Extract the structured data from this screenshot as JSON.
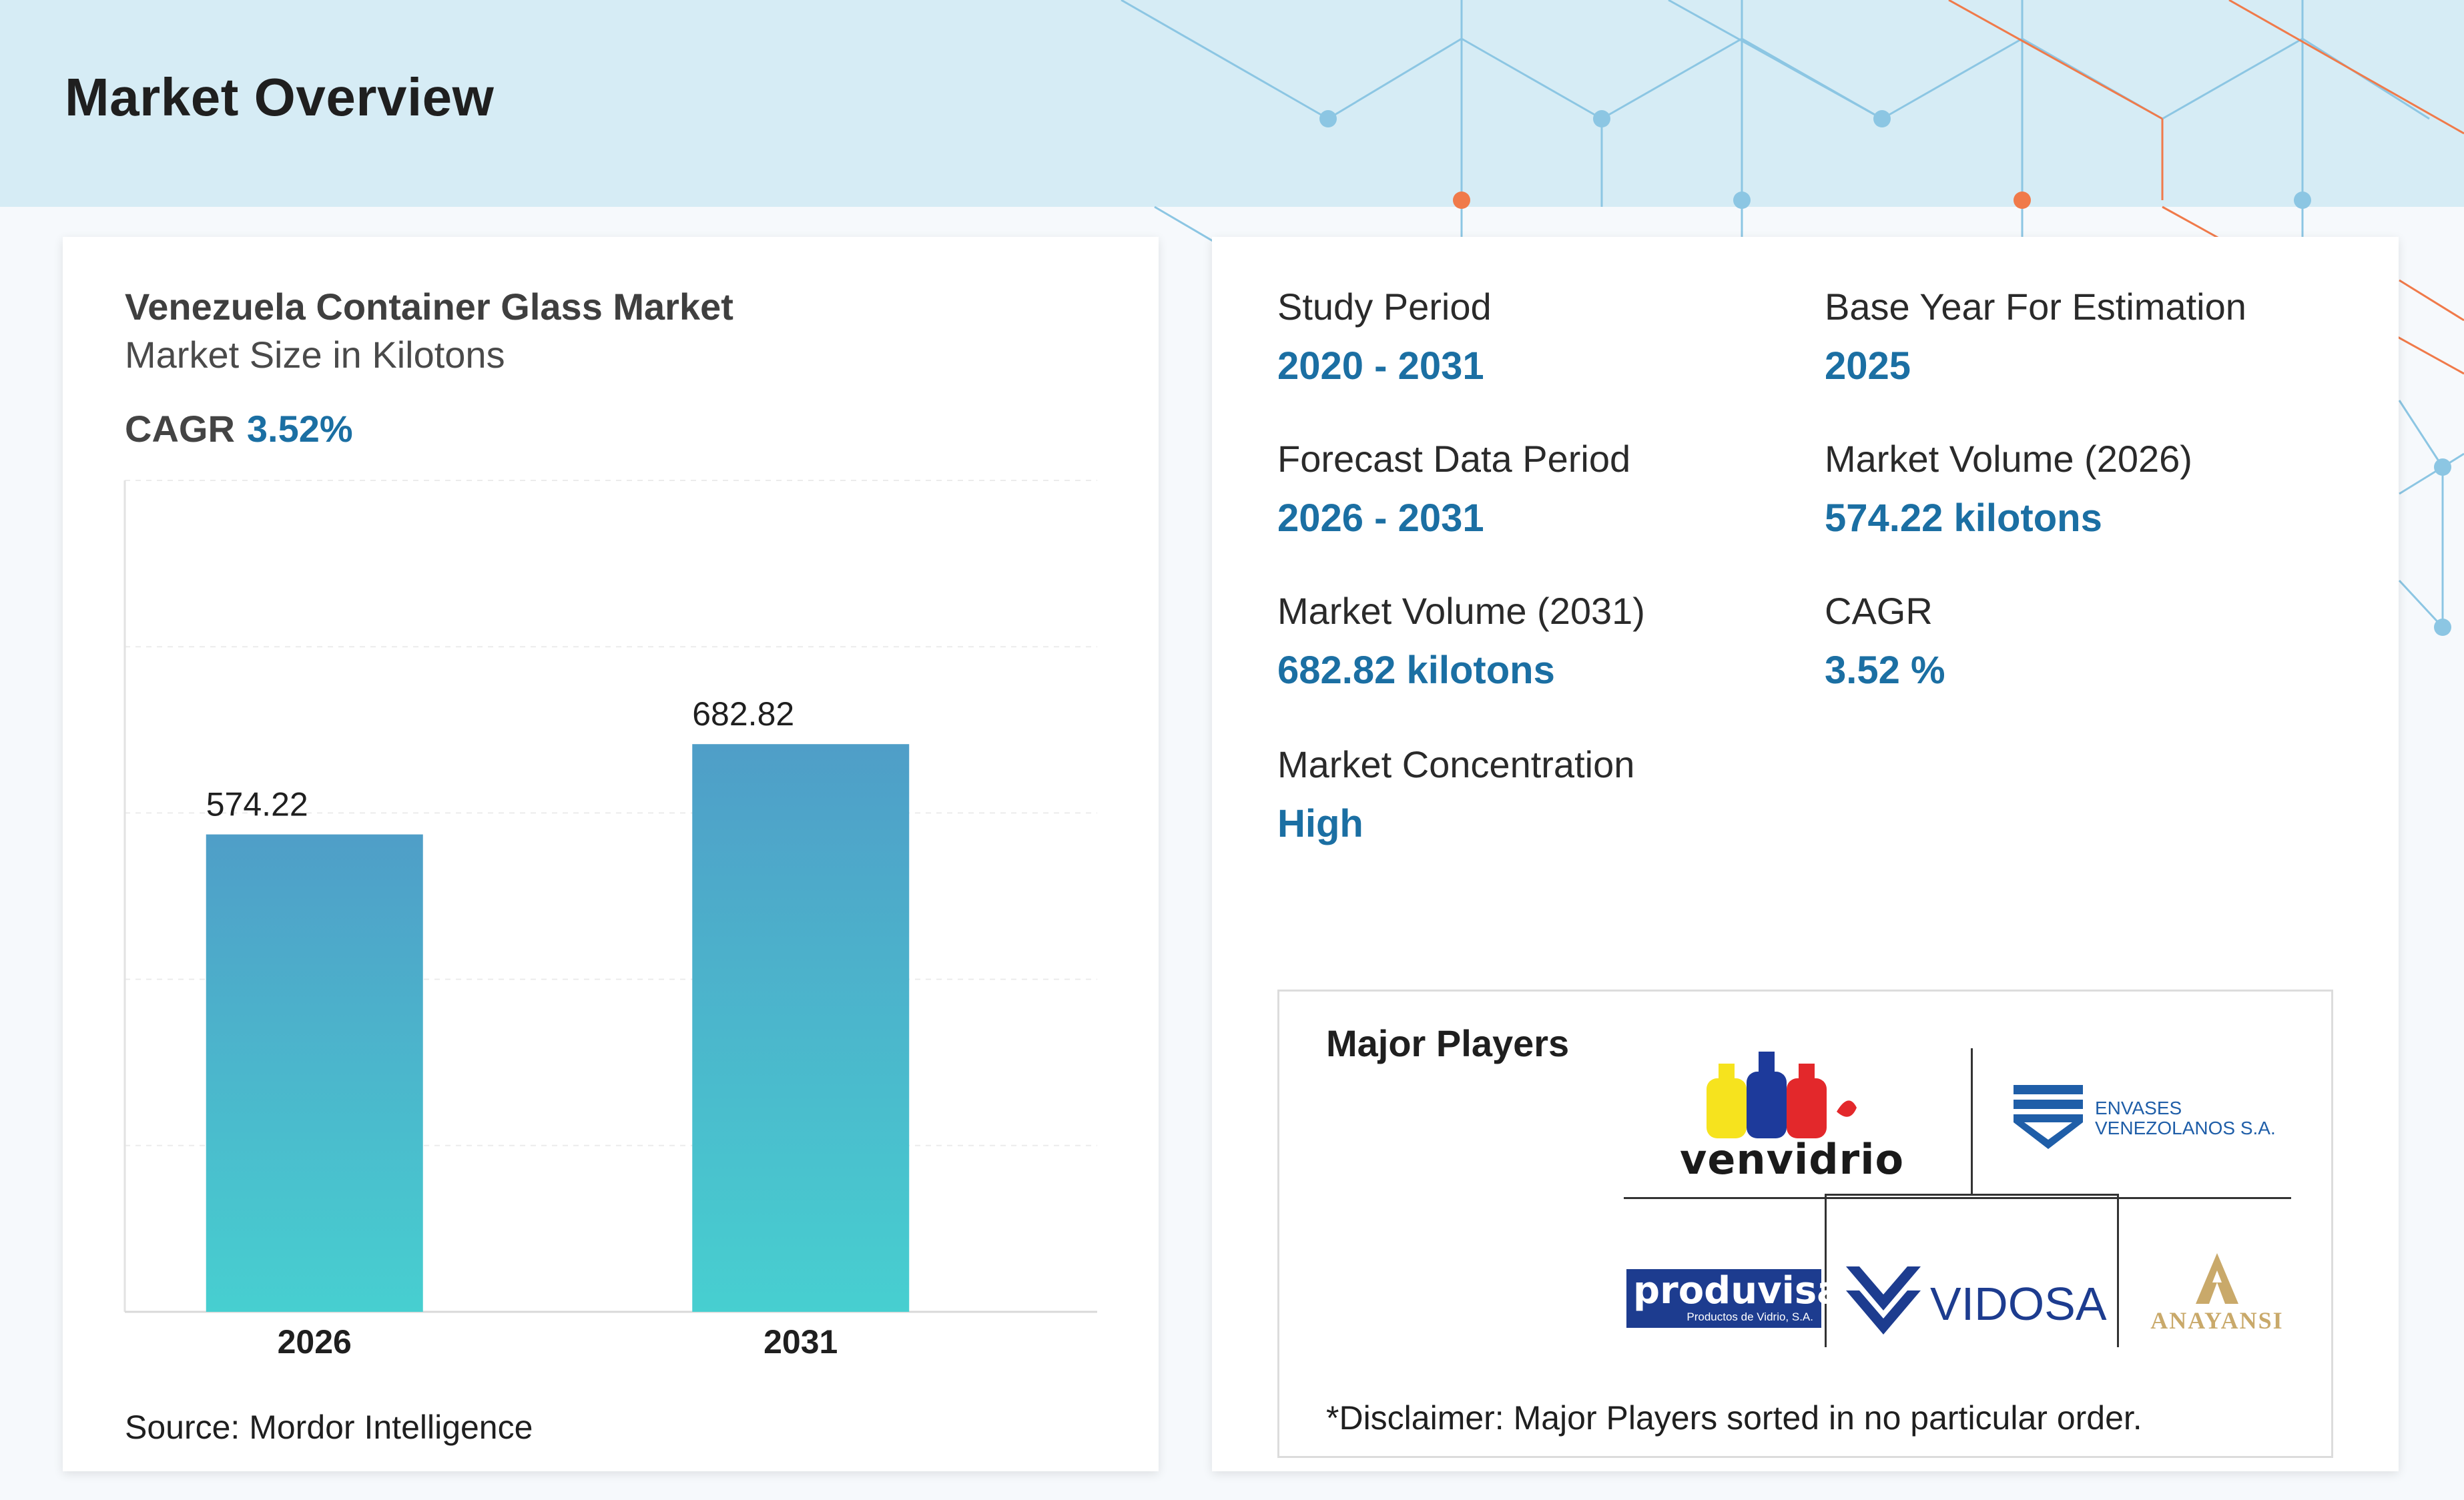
{
  "header": {
    "title": "Market Overview"
  },
  "chart_card": {
    "title": "Venezuela Container Glass Market",
    "subtitle": "Market Size in Kilotons",
    "cagr_label": "CAGR",
    "cagr_value": "3.52%",
    "source": "Source: Mordor Intelligence"
  },
  "chart_data": {
    "type": "bar",
    "categories": [
      "2026",
      "2031"
    ],
    "values": [
      574.22,
      682.82
    ],
    "value_labels": [
      "574.22",
      "682.82"
    ],
    "title": "Venezuela Container Glass Market",
    "subtitle": "Market Size in Kilotons",
    "xlabel": "",
    "ylabel": "",
    "ylim": [
      0,
      1000
    ],
    "grid": true,
    "bar_gradient": [
      "#4f9ec8",
      "#47cfd0"
    ]
  },
  "stats": {
    "study_period": {
      "label": "Study Period",
      "value": "2020 - 2031"
    },
    "base_year": {
      "label": "Base Year For Estimation",
      "value": "2025"
    },
    "forecast_period": {
      "label": "Forecast Data Period",
      "value": "2026 - 2031"
    },
    "volume_2026": {
      "label": "Market Volume (2026)",
      "value": "574.22 kilotons"
    },
    "volume_2031": {
      "label": "Market Volume (2031)",
      "value": "682.82 kilotons"
    },
    "cagr": {
      "label": "CAGR",
      "value": "3.52 %"
    },
    "concentration": {
      "label": "Market Concentration",
      "value": "High"
    }
  },
  "major_players": {
    "title": "Major Players",
    "disclaimer": "*Disclaimer: Major Players sorted in no particular order.",
    "logos": [
      {
        "name": "venvidrio",
        "text": "venvidrio"
      },
      {
        "name": "envases-venezolanos",
        "text_line1": "ENVASES",
        "text_line2": "VENEZOLANOS S.A."
      },
      {
        "name": "produvisa",
        "text": "produvisa",
        "subtext": "Productos de Vidrio, S.A."
      },
      {
        "name": "vidosa",
        "text": "VIDOSA"
      },
      {
        "name": "anayansi",
        "text": "ANAYANSI"
      }
    ]
  },
  "colors": {
    "accent_blue": "#1b6fa3",
    "header_bg": "#d6ecf5",
    "network_blue": "#8cc6e3",
    "network_orange": "#f07a4a"
  }
}
